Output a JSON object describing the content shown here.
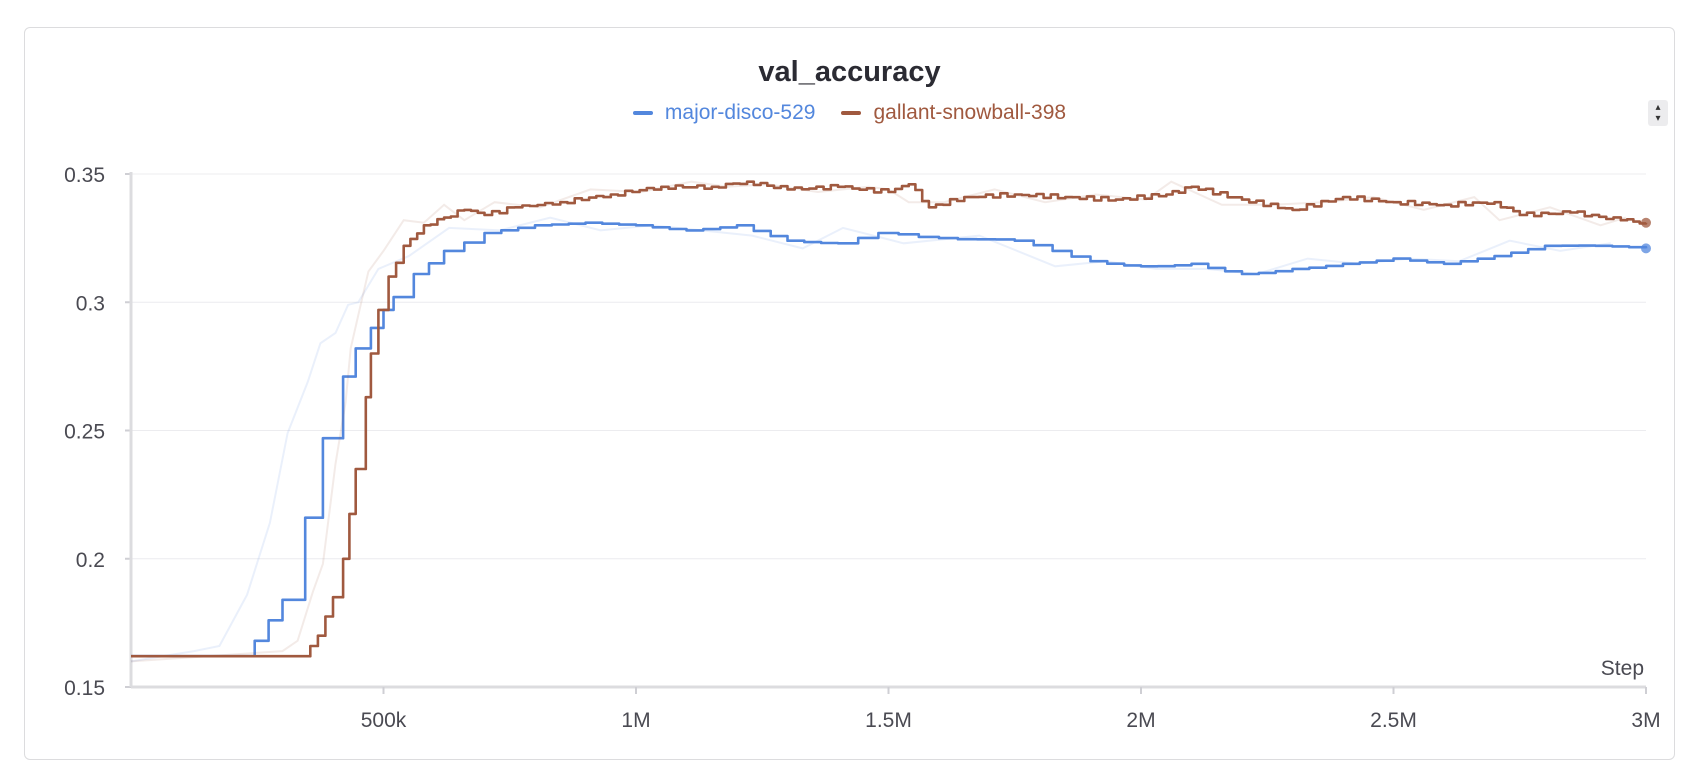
{
  "chart_data": {
    "type": "line",
    "title": "val_accuracy",
    "xlabel": "Step",
    "ylabel": "",
    "xlim": [
      0,
      3000000
    ],
    "ylim": [
      0.15,
      0.35
    ],
    "x_ticks": [
      500000,
      1000000,
      1500000,
      2000000,
      2500000,
      3000000
    ],
    "x_tick_labels": [
      "500k",
      "1M",
      "1.5M",
      "2M",
      "2.5M",
      "3M"
    ],
    "y_ticks": [
      0.15,
      0.2,
      0.25,
      0.3,
      0.35
    ],
    "y_tick_labels": [
      "0.15",
      "0.2",
      "0.25",
      "0.3",
      "0.35"
    ],
    "grid": true,
    "legend_position": "top-center",
    "series": [
      {
        "name": "major-disco-529",
        "color": "#5387dd",
        "x": [
          0,
          195000,
          245000,
          300000,
          345000,
          380000,
          420000,
          445000,
          475000,
          500000,
          520000,
          560000,
          620000,
          700000,
          800000,
          900000,
          1000000,
          1100000,
          1200000,
          1300000,
          1400000,
          1480000,
          1600000,
          1750000,
          1900000,
          2000000,
          2100000,
          2200000,
          2300000,
          2400000,
          2500000,
          2600000,
          2700000,
          2800000,
          2900000,
          3000000
        ],
        "y": [
          0.162,
          0.162,
          0.168,
          0.184,
          0.216,
          0.247,
          0.271,
          0.282,
          0.29,
          0.297,
          0.302,
          0.311,
          0.32,
          0.327,
          0.33,
          0.331,
          0.33,
          0.328,
          0.33,
          0.324,
          0.323,
          0.327,
          0.325,
          0.324,
          0.316,
          0.314,
          0.315,
          0.311,
          0.313,
          0.315,
          0.317,
          0.315,
          0.318,
          0.322,
          0.322,
          0.321
        ]
      },
      {
        "name": "gallant-snowball-398",
        "color": "#a0593f",
        "x": [
          0,
          340000,
          370000,
          400000,
          420000,
          445000,
          465000,
          475000,
          490000,
          510000,
          540000,
          580000,
          620000,
          660000,
          700000,
          760000,
          850000,
          950000,
          1050000,
          1150000,
          1220000,
          1300000,
          1400000,
          1500000,
          1540000,
          1580000,
          1650000,
          1750000,
          1850000,
          1950000,
          2050000,
          2100000,
          2200000,
          2300000,
          2400000,
          2500000,
          2600000,
          2700000,
          2750000,
          2850000,
          2950000,
          3000000
        ],
        "y": [
          0.162,
          0.162,
          0.17,
          0.185,
          0.2,
          0.235,
          0.263,
          0.28,
          0.297,
          0.31,
          0.322,
          0.33,
          0.333,
          0.336,
          0.334,
          0.337,
          0.339,
          0.342,
          0.345,
          0.345,
          0.347,
          0.344,
          0.345,
          0.343,
          0.346,
          0.337,
          0.341,
          0.342,
          0.341,
          0.34,
          0.342,
          0.345,
          0.34,
          0.336,
          0.341,
          0.339,
          0.338,
          0.339,
          0.334,
          0.335,
          0.332,
          0.331
        ]
      }
    ]
  },
  "controls": {
    "scroll_up": "▴",
    "scroll_down": "▾"
  }
}
